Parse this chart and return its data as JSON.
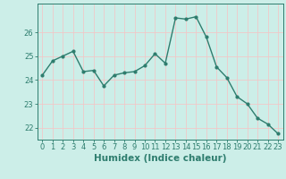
{
  "x": [
    0,
    1,
    2,
    3,
    4,
    5,
    6,
    7,
    8,
    9,
    10,
    11,
    12,
    13,
    14,
    15,
    16,
    17,
    18,
    19,
    20,
    21,
    22,
    23
  ],
  "y": [
    24.2,
    24.8,
    25.0,
    25.2,
    24.35,
    24.4,
    23.75,
    24.2,
    24.3,
    24.35,
    24.6,
    25.1,
    24.7,
    26.6,
    26.55,
    26.65,
    25.8,
    24.55,
    24.1,
    23.3,
    23.0,
    22.4,
    22.15,
    21.75
  ],
  "line_color": "#2e7d6e",
  "marker": "o",
  "markersize": 2.0,
  "linewidth": 1.0,
  "background_color": "#cceee8",
  "grid_color": "#f0c8c8",
  "tick_color": "#2e7d6e",
  "label_color": "#2e7d6e",
  "xlabel": "Humidex (Indice chaleur)",
  "ylim": [
    21.5,
    27.2
  ],
  "yticks": [
    22,
    23,
    24,
    25,
    26
  ],
  "xticks": [
    0,
    1,
    2,
    3,
    4,
    5,
    6,
    7,
    8,
    9,
    10,
    11,
    12,
    13,
    14,
    15,
    16,
    17,
    18,
    19,
    20,
    21,
    22,
    23
  ],
  "xlabel_fontsize": 7.5,
  "tick_fontsize": 6.0
}
